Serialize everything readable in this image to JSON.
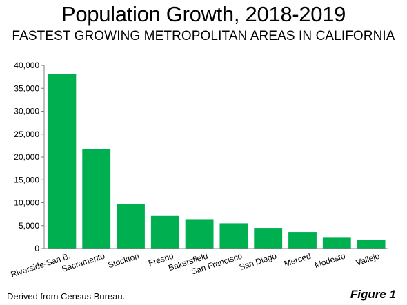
{
  "chart_data": {
    "type": "bar",
    "title": "Population Growth, 2018-2019",
    "subtitle": "FASTEST GROWING METROPOLITAN AREAS IN CALIFORNIA",
    "xlabel": "",
    "ylabel": "",
    "categories": [
      "Riverside-San B.",
      "Sacramento",
      "Stockton",
      "Fresno",
      "Bakersfield",
      "San Francisco",
      "San Diego",
      "Merced",
      "Modesto",
      "Vallejo"
    ],
    "values": [
      38100,
      21800,
      9700,
      7100,
      6400,
      5500,
      4500,
      3600,
      2500,
      1900
    ],
    "ylim": [
      0,
      40000
    ],
    "yticks": [
      0,
      5000,
      10000,
      15000,
      20000,
      25000,
      30000,
      35000,
      40000
    ],
    "ytick_labels": [
      "0",
      "5,000",
      "10,000",
      "15,000",
      "20,000",
      "25,000",
      "30,000",
      "35,000",
      "40,000"
    ],
    "grid": false,
    "bar_color": "#00b050"
  },
  "footer": {
    "source": "Derived from Census Bureau.",
    "figure_label": "Figure 1"
  }
}
